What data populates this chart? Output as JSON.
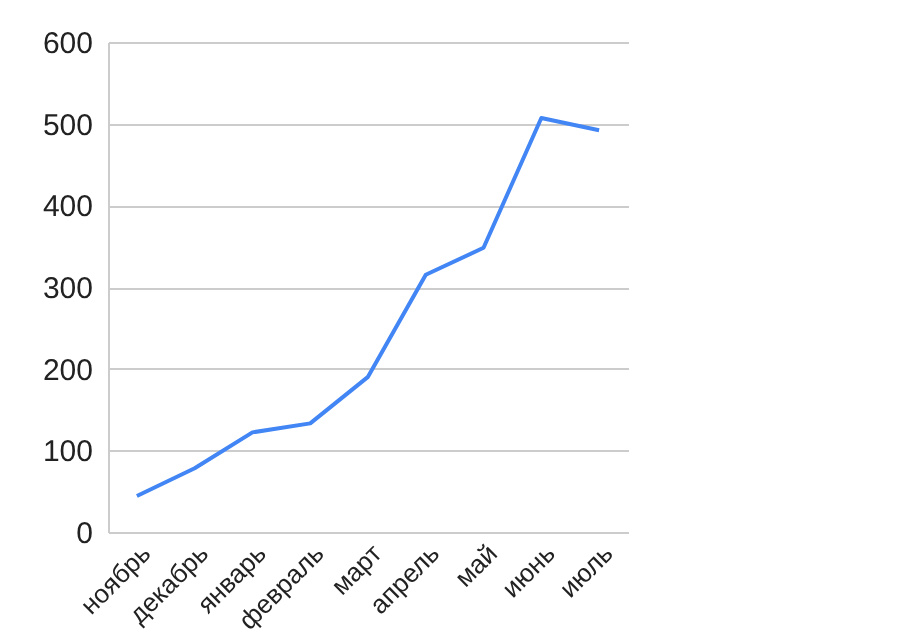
{
  "chart_data": {
    "type": "line",
    "categories": [
      "ноябрь",
      "декабрь",
      "январь",
      "февраль",
      "март",
      "апрель",
      "май",
      "июнь",
      "июль"
    ],
    "series": [
      {
        "color": "#4285f4",
        "values": [
          44,
          78,
          122,
          133,
          190,
          315,
          348,
          507,
          492
        ]
      }
    ],
    "ylim": [
      0,
      600
    ],
    "yticks": [
      0,
      100,
      200,
      300,
      400,
      500,
      600
    ],
    "grid": "y",
    "marker": "none"
  }
}
